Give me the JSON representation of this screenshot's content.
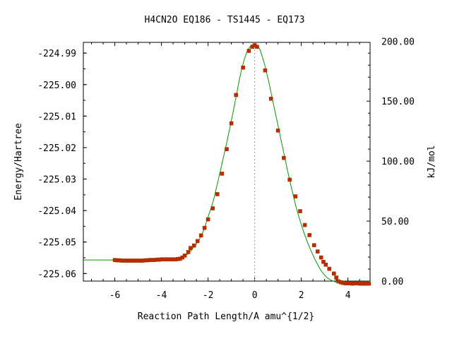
{
  "chart_data": {
    "type": "line",
    "title": "H4CN2O   EQ186 - TS1445 - EQ173",
    "xlabel": "Reaction Path Length/A amu^{1/2}",
    "ylabel": "Energy/Hartree",
    "y2label": "kJ/mol",
    "xlim": [
      -7.35,
      4.95
    ],
    "ylim": [
      -225.0624,
      -224.9866
    ],
    "y2lim": [
      0.0,
      199.0
    ],
    "x_ticks": [
      -6,
      -4,
      -2,
      0,
      2,
      4
    ],
    "x_tick_labels": [
      "-6",
      "-4",
      "-2",
      "0",
      "2",
      "4"
    ],
    "y_ticks": [
      -224.99,
      -225.0,
      -225.01,
      -225.02,
      -225.03,
      -225.04,
      -225.05,
      -225.06
    ],
    "y_tick_labels": [
      "-224.99",
      "-225.00",
      "-225.01",
      "-225.02",
      "-225.03",
      "-225.04",
      "-225.05",
      "-225.06"
    ],
    "y2_ticks": [
      0,
      50,
      100,
      150,
      200
    ],
    "y2_tick_labels": [
      "0.00",
      "50.00",
      "100.00",
      "150.00",
      "200.00"
    ],
    "ts_x": 0,
    "colors": {
      "line": "#009900",
      "marker": "#cc2200",
      "marker_edge": "#884400",
      "ts_line": "#999999"
    },
    "series": [
      {
        "x": [
          -7.35,
          -6.5,
          -6.0,
          -5.5,
          -5.0,
          -4.5,
          -4.0,
          -3.5,
          -3.2,
          -3.0,
          -2.8,
          -2.6,
          -2.4,
          -2.2,
          -2.0,
          -1.8,
          -1.6,
          -1.4,
          -1.2,
          -1.0,
          -0.8,
          -0.6,
          -0.4,
          -0.2,
          0.0,
          0.2,
          0.4,
          0.6,
          0.8,
          1.0,
          1.2,
          1.4,
          1.6,
          1.8,
          2.0,
          2.2,
          2.4,
          2.6,
          2.8,
          3.0,
          3.2,
          3.4,
          3.6,
          3.8,
          4.0,
          4.3,
          4.6,
          4.95
        ],
        "y": [
          -225.0557,
          -225.0557,
          -225.0557,
          -225.0557,
          -225.0557,
          -225.0556,
          -225.0554,
          -225.0553,
          -225.0551,
          -225.0545,
          -225.0533,
          -225.0515,
          -225.0495,
          -225.0465,
          -225.042,
          -225.0375,
          -225.0315,
          -225.025,
          -225.0185,
          -225.0115,
          -225.004,
          -224.9965,
          -224.991,
          -224.988,
          -224.9873,
          -224.9885,
          -224.993,
          -224.999,
          -225.006,
          -225.013,
          -225.02,
          -225.027,
          -225.0335,
          -225.0395,
          -225.0445,
          -225.0488,
          -225.0525,
          -225.0557,
          -225.0585,
          -225.0605,
          -225.0618,
          -225.0625,
          -225.063,
          -225.0632,
          -225.0632,
          -225.0631,
          -225.0631,
          -225.0632
        ]
      },
      {
        "x": [
          -6.0,
          -5.9,
          -5.8,
          -5.7,
          -5.6,
          -5.5,
          -5.4,
          -5.3,
          -5.2,
          -5.1,
          -5.0,
          -4.9,
          -4.8,
          -4.7,
          -4.6,
          -4.5,
          -4.4,
          -4.3,
          -4.2,
          -4.1,
          -4.0,
          -3.9,
          -3.8,
          -3.7,
          -3.6,
          -3.5,
          -3.4,
          -3.3,
          -3.2,
          -3.1,
          -3.0,
          -2.85,
          -2.75,
          -2.6,
          -2.45,
          -2.3,
          -2.15,
          -2.0,
          -1.8,
          -1.6,
          -1.4,
          -1.2,
          -1.0,
          -0.8,
          -0.5,
          -0.25,
          -0.1,
          0.0,
          0.1,
          0.45,
          0.7,
          1.0,
          1.25,
          1.5,
          1.75,
          1.95,
          2.15,
          2.35,
          2.55,
          2.7,
          2.85,
          2.95,
          3.05,
          3.2,
          3.4,
          3.5,
          3.6,
          3.7,
          3.8,
          3.9,
          4.0,
          4.1,
          4.2,
          4.3,
          4.4,
          4.5,
          4.6,
          4.7,
          4.8,
          4.9
        ],
        "y": [
          -225.0557,
          -225.0558,
          -225.0558,
          -225.0559,
          -225.0559,
          -225.0559,
          -225.0559,
          -225.0559,
          -225.0559,
          -225.0559,
          -225.0559,
          -225.0559,
          -225.0559,
          -225.0558,
          -225.0558,
          -225.0557,
          -225.0557,
          -225.0557,
          -225.0556,
          -225.0556,
          -225.0555,
          -225.0555,
          -225.0555,
          -225.0555,
          -225.0555,
          -225.0555,
          -225.0555,
          -225.0554,
          -225.0553,
          -225.0549,
          -225.0543,
          -225.0532,
          -225.0519,
          -225.0511,
          -225.0497,
          -225.0479,
          -225.0455,
          -225.0428,
          -225.0393,
          -225.0348,
          -225.0283,
          -225.0205,
          -225.0123,
          -225.0033,
          -224.9946,
          -224.9893,
          -224.988,
          -224.9875,
          -224.988,
          -224.9955,
          -225.0045,
          -225.0146,
          -225.0233,
          -225.0302,
          -225.0355,
          -225.0402,
          -225.0446,
          -225.0478,
          -225.051,
          -225.053,
          -225.0549,
          -225.0563,
          -225.0572,
          -225.0585,
          -225.06,
          -225.0613,
          -225.0625,
          -225.0628,
          -225.063,
          -225.0631,
          -225.0631,
          -225.0631,
          -225.0632,
          -225.0631,
          -225.0631,
          -225.0632,
          -225.0632,
          -225.0632,
          -225.0632,
          -225.0632
        ],
        "style": "markers"
      }
    ]
  }
}
